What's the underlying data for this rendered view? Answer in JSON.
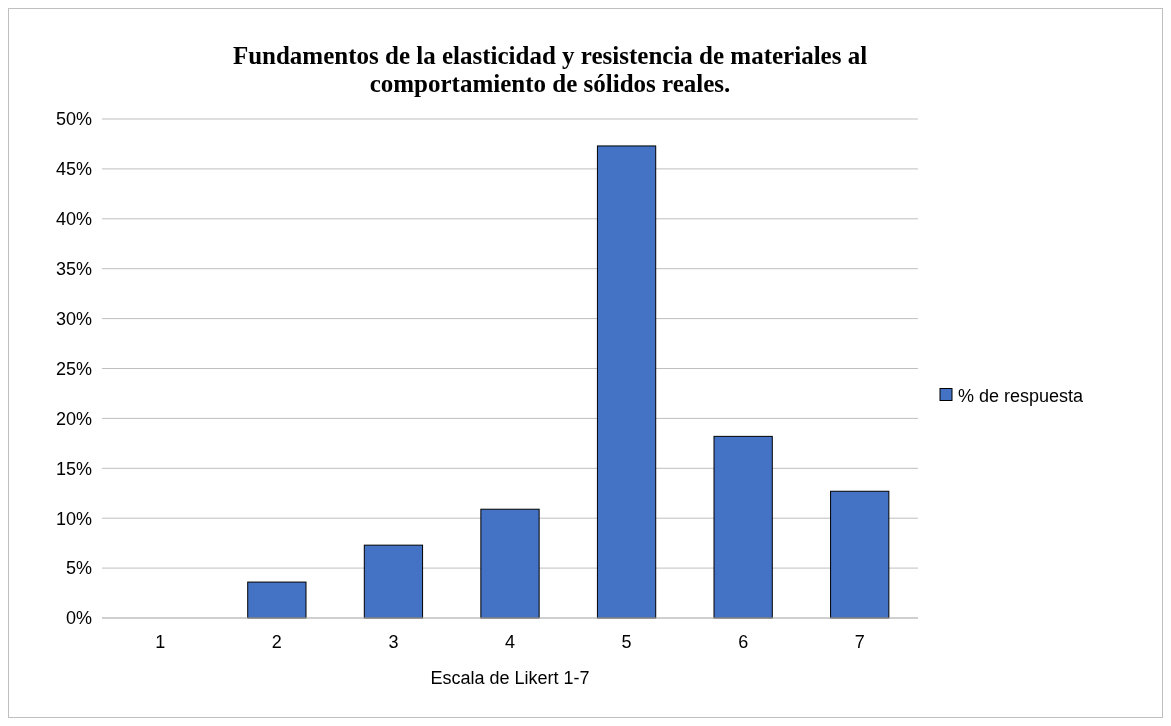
{
  "chart_data": {
    "type": "bar",
    "title": "Fundamentos de la elasticidad y resistencia de materiales al comportamiento de sólidos reales.",
    "xlabel": "Escala de Likert 1-7",
    "categories": [
      "1",
      "2",
      "3",
      "4",
      "5",
      "6",
      "7"
    ],
    "series": [
      {
        "name": "% de respuesta",
        "color": "#4472c4",
        "values": [
          0,
          3.6,
          7.3,
          10.9,
          47.3,
          18.2,
          12.7
        ]
      }
    ],
    "ylim": [
      0,
      50
    ],
    "yticks": [
      {
        "value": 0,
        "label": "0%"
      },
      {
        "value": 5,
        "label": "5%"
      },
      {
        "value": 10,
        "label": "10%"
      },
      {
        "value": 15,
        "label": "15%"
      },
      {
        "value": 20,
        "label": "20%"
      },
      {
        "value": 25,
        "label": "25%"
      },
      {
        "value": 30,
        "label": "30%"
      },
      {
        "value": 35,
        "label": "35%"
      },
      {
        "value": 40,
        "label": "40%"
      },
      {
        "value": 45,
        "label": "45%"
      },
      {
        "value": 50,
        "label": "50%"
      }
    ],
    "grid": "y",
    "legend": "right"
  }
}
